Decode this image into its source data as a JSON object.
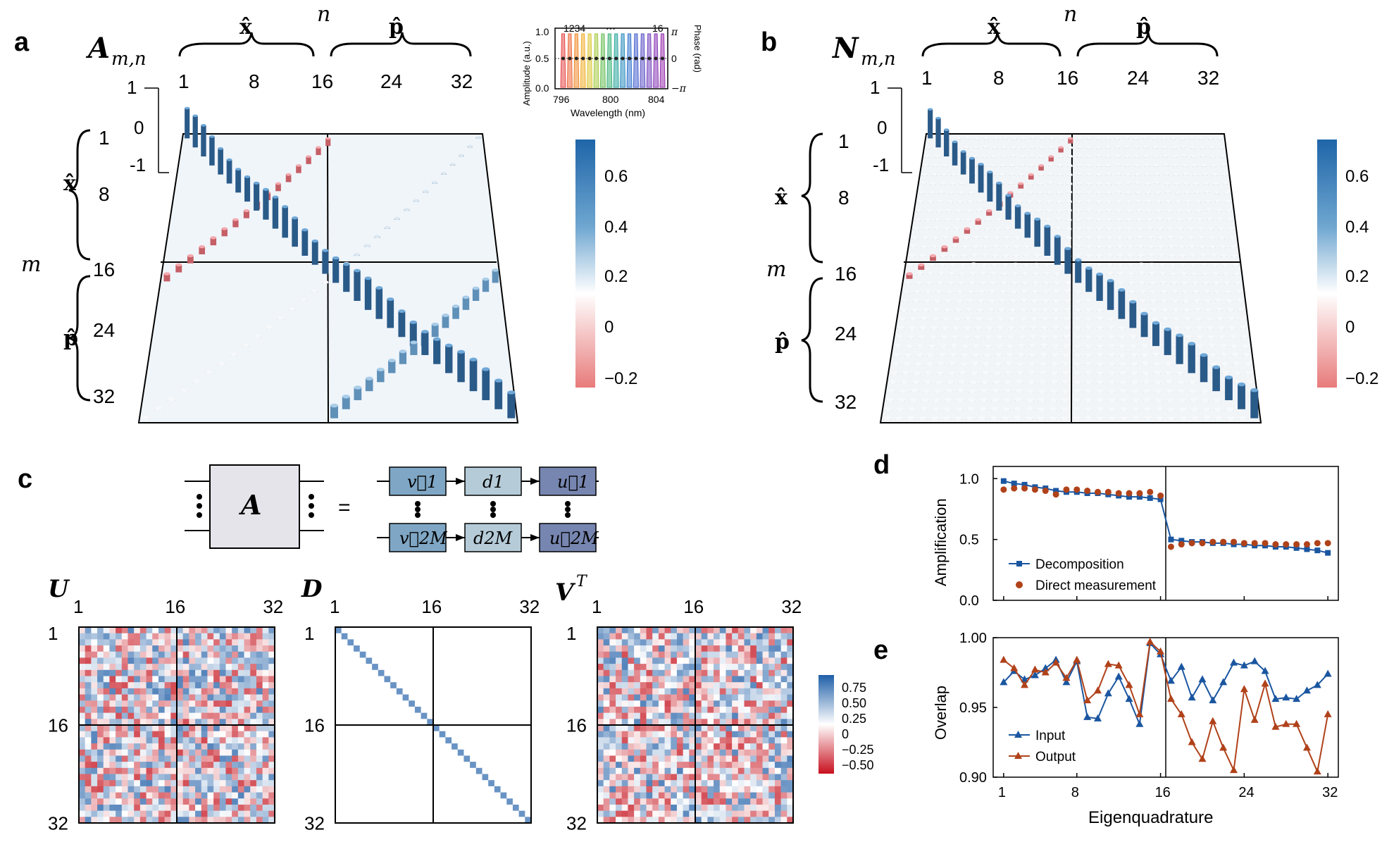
{
  "panel_letters": {
    "a": "a",
    "b": "b",
    "c": "c",
    "d": "d",
    "e": "e"
  },
  "panel_a": {
    "matrix_symbol": "A",
    "matrix_subscript": "m,n",
    "n_label": "n",
    "m_label": "m",
    "x_hat": "x̂",
    "p_hat": "p̂",
    "col_ticks": [
      "1",
      "8",
      "16",
      "24",
      "32"
    ],
    "row_ticks": [
      "1",
      "8",
      "16",
      "24",
      "32"
    ],
    "z_ticks": [
      "1",
      "0",
      "-1"
    ],
    "colorbar_ticks": [
      "0.6",
      "0.4",
      "0.2",
      "0",
      "−0.2"
    ],
    "accent_blue": "#2166ac",
    "accent_red": "#d6604d"
  },
  "panel_b": {
    "matrix_symbol": "N",
    "matrix_subscript": "m,n",
    "n_label": "n",
    "m_label": "m",
    "x_hat": "x̂",
    "p_hat": "p̂",
    "col_ticks": [
      "1",
      "8",
      "16",
      "24",
      "32"
    ],
    "row_ticks": [
      "1",
      "8",
      "16",
      "24",
      "32"
    ],
    "z_ticks": [
      "1",
      "0",
      "-1"
    ],
    "colorbar_ticks": [
      "0.6",
      "0.4",
      "0.2",
      "0",
      "−0.2"
    ]
  },
  "inset": {
    "top_ticks": [
      "1234",
      "···",
      "16"
    ],
    "y_left_label": "Amplitude (a.u.)",
    "y_right_label": "Phase (rad)",
    "y_left_ticks": [
      "1.0",
      "0.5",
      "0.0"
    ],
    "y_right_ticks": [
      "π",
      "0",
      "−π"
    ],
    "x_ticks": [
      "796",
      "800",
      "804"
    ],
    "x_label": "Wavelength (nm)"
  },
  "panel_c": {
    "box_label": "A",
    "equals": "=",
    "v1": "v⃗1",
    "d1": "d1",
    "u1": "u⃗1",
    "v2m": "v⃗2M",
    "d2m": "d2M",
    "u2m": "u⃗2M",
    "u_title": "U",
    "d_title": "D",
    "vt_title": "V",
    "vt_sup": "T",
    "axis_ticks": [
      "1",
      "16",
      "32"
    ],
    "colorbar_ticks": [
      "0.75",
      "0.50",
      "0.25",
      "0",
      "−0.25",
      "−0.50"
    ]
  },
  "chart_data": [
    {
      "type": "scatter",
      "title": "d",
      "xlabel": "",
      "ylabel": "Amplification",
      "xlim": [
        0,
        33
      ],
      "ylim": [
        0.0,
        1.1
      ],
      "yticks": [
        "1.0",
        "0.5",
        "0.0"
      ],
      "x": [
        1,
        2,
        3,
        4,
        5,
        6,
        7,
        8,
        9,
        10,
        11,
        12,
        13,
        14,
        15,
        16,
        17,
        18,
        19,
        20,
        21,
        22,
        23,
        24,
        25,
        26,
        27,
        28,
        29,
        30,
        31,
        32
      ],
      "series": [
        {
          "name": "Decomposition",
          "values": [
            0.98,
            0.96,
            0.95,
            0.93,
            0.92,
            0.9,
            0.89,
            0.89,
            0.88,
            0.88,
            0.87,
            0.86,
            0.85,
            0.85,
            0.84,
            0.83,
            0.5,
            0.49,
            0.48,
            0.48,
            0.47,
            0.47,
            0.46,
            0.46,
            0.45,
            0.45,
            0.44,
            0.44,
            0.43,
            0.42,
            0.41,
            0.39
          ]
        },
        {
          "name": "Direct measurement",
          "values": [
            0.91,
            0.92,
            0.92,
            0.91,
            0.9,
            0.87,
            0.91,
            0.91,
            0.9,
            0.89,
            0.89,
            0.88,
            0.88,
            0.88,
            0.89,
            0.86,
            0.44,
            0.46,
            0.47,
            0.47,
            0.48,
            0.48,
            0.48,
            0.47,
            0.47,
            0.47,
            0.46,
            0.46,
            0.46,
            0.46,
            0.47,
            0.47
          ]
        }
      ]
    },
    {
      "type": "line",
      "title": "e",
      "xlabel": "Eigenquadrature",
      "ylabel": "Overlap",
      "xlim": [
        0,
        33
      ],
      "ylim": [
        0.9,
        1.0
      ],
      "xticks": [
        "1",
        "8",
        "16",
        "24",
        "32"
      ],
      "yticks": [
        "1.00",
        "0.95",
        "0.90"
      ],
      "x": [
        1,
        2,
        3,
        4,
        5,
        6,
        7,
        8,
        9,
        10,
        11,
        12,
        13,
        14,
        15,
        16,
        17,
        18,
        19,
        20,
        21,
        22,
        23,
        24,
        25,
        26,
        27,
        28,
        29,
        30,
        31,
        32
      ],
      "series": [
        {
          "name": "Input",
          "values": [
            0.968,
            0.976,
            0.97,
            0.973,
            0.978,
            0.984,
            0.968,
            0.983,
            0.943,
            0.942,
            0.96,
            0.972,
            0.956,
            0.938,
            0.996,
            0.988,
            0.969,
            0.979,
            0.957,
            0.97,
            0.955,
            0.968,
            0.982,
            0.98,
            0.983,
            0.976,
            0.956,
            0.957,
            0.956,
            0.962,
            0.966,
            0.974
          ]
        },
        {
          "name": "Output",
          "values": [
            0.984,
            0.978,
            0.966,
            0.977,
            0.975,
            0.982,
            0.971,
            0.984,
            0.955,
            0.962,
            0.981,
            0.98,
            0.966,
            0.945,
            0.997,
            0.99,
            0.956,
            0.945,
            0.925,
            0.913,
            0.94,
            0.921,
            0.905,
            0.963,
            0.941,
            0.967,
            0.936,
            0.938,
            0.938,
            0.921,
            0.904,
            0.945
          ]
        }
      ]
    }
  ]
}
